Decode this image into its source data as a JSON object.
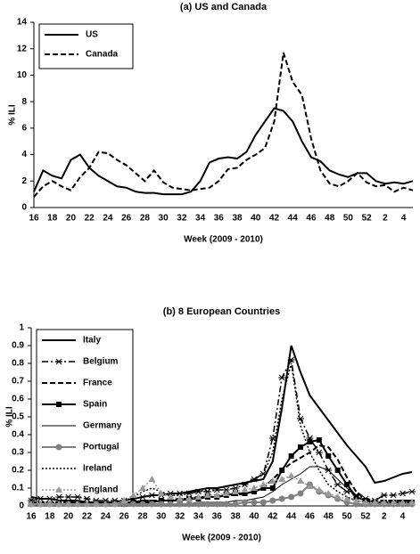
{
  "chart_data": [
    {
      "type": "line",
      "title": "(a) US and Canada",
      "x_label": "Week (2009 - 2010)",
      "y_label": "% ILI",
      "categories": [
        "16",
        null,
        "18",
        null,
        "20",
        null,
        "22",
        null,
        "24",
        null,
        "26",
        null,
        "28",
        null,
        "30",
        null,
        "32",
        null,
        "34",
        null,
        "36",
        null,
        "38",
        null,
        "40",
        null,
        "42",
        null,
        "44",
        null,
        "46",
        null,
        "48",
        null,
        "50",
        null,
        "52",
        null,
        "2",
        null,
        "4",
        null
      ],
      "ylim": [
        0,
        14
      ],
      "yticks": [
        0,
        2,
        4,
        6,
        8,
        10,
        12,
        14
      ],
      "legend": "upper left",
      "series": [
        {
          "name": "US",
          "color": "#000000",
          "line_style": "solid",
          "values": [
            1.2,
            2.8,
            2.4,
            2.2,
            3.6,
            4.0,
            3.0,
            2.4,
            2.0,
            1.6,
            1.5,
            1.2,
            1.1,
            1.1,
            1.0,
            1.0,
            1.0,
            1.2,
            2.0,
            3.4,
            3.7,
            3.8,
            3.7,
            4.2,
            5.5,
            6.5,
            7.5,
            7.3,
            6.5,
            5.0,
            3.8,
            3.5,
            2.8,
            2.5,
            2.3,
            2.6,
            2.6,
            2.0,
            1.8,
            1.9,
            1.8,
            2.0
          ]
        },
        {
          "name": "Canada",
          "color": "#000000",
          "line_style": "dash",
          "values": [
            0.8,
            1.6,
            2.0,
            1.6,
            1.3,
            2.3,
            3.0,
            4.2,
            4.1,
            3.6,
            3.2,
            2.6,
            2.0,
            2.8,
            1.9,
            1.5,
            1.4,
            1.3,
            1.4,
            1.5,
            2.0,
            2.9,
            3.0,
            3.6,
            4.0,
            4.5,
            6.5,
            11.7,
            9.5,
            8.5,
            5.2,
            2.8,
            1.8,
            1.6,
            2.0,
            2.6,
            1.9,
            1.6,
            1.7,
            1.2,
            1.5,
            1.3
          ]
        }
      ]
    },
    {
      "type": "line",
      "title": "(b) 8 European Countries",
      "x_label": "Week (2009 - 2010)",
      "y_label": "% ILI",
      "categories": [
        "16",
        null,
        "18",
        null,
        "20",
        null,
        "22",
        null,
        "24",
        null,
        "26",
        null,
        "28",
        null,
        "30",
        null,
        "32",
        null,
        "34",
        null,
        "36",
        null,
        "38",
        null,
        "40",
        null,
        "42",
        null,
        "44",
        null,
        "46",
        null,
        "48",
        null,
        "50",
        null,
        "52",
        null,
        "2",
        null,
        "4",
        null
      ],
      "ylim": [
        0,
        1
      ],
      "yticks": [
        0,
        0.1,
        0.2,
        0.3,
        0.4,
        0.5,
        0.6,
        0.7,
        0.8,
        0.9,
        1
      ],
      "legend": "upper left",
      "series": [
        {
          "name": "Italy",
          "color": "#000000",
          "line_style": "solid",
          "values": [
            0.05,
            0.04,
            0.04,
            0.03,
            0.03,
            0.03,
            0.02,
            0.02,
            0.02,
            0.02,
            0.03,
            0.04,
            0.05,
            0.06,
            0.06,
            0.07,
            0.07,
            0.08,
            0.09,
            0.1,
            0.1,
            0.11,
            0.12,
            0.13,
            0.14,
            0.15,
            0.25,
            0.55,
            0.9,
            0.75,
            0.62,
            0.55,
            0.48,
            0.41,
            0.34,
            0.28,
            0.22,
            0.13,
            0.14,
            0.16,
            0.18,
            0.19
          ]
        },
        {
          "name": "Belgium",
          "color": "#000000",
          "line_style": "dashdot",
          "marker": "asterisk",
          "values": [
            0.03,
            0.04,
            0.04,
            0.05,
            0.05,
            0.05,
            0.04,
            0.03,
            0.03,
            0.03,
            0.03,
            0.04,
            0.05,
            0.06,
            0.06,
            0.07,
            0.07,
            0.07,
            0.08,
            0.08,
            0.09,
            0.09,
            0.1,
            0.12,
            0.15,
            0.18,
            0.38,
            0.72,
            0.82,
            0.49,
            0.38,
            0.3,
            0.2,
            0.12,
            0.08,
            0.06,
            0.04,
            0.03,
            0.06,
            0.06,
            0.07,
            0.08
          ]
        },
        {
          "name": "France",
          "color": "#000000",
          "line_style": "dash",
          "values": [
            0.02,
            0.02,
            0.02,
            0.02,
            0.02,
            0.02,
            0.02,
            0.02,
            0.02,
            0.02,
            0.02,
            0.02,
            0.03,
            0.03,
            0.03,
            0.04,
            0.04,
            0.04,
            0.05,
            0.05,
            0.05,
            0.06,
            0.06,
            0.07,
            0.08,
            0.1,
            0.15,
            0.2,
            0.24,
            0.27,
            0.3,
            0.34,
            0.33,
            0.26,
            0.16,
            0.08,
            0.04,
            0.03,
            0.03,
            0.03,
            0.03,
            0.03
          ]
        },
        {
          "name": "Spain",
          "color": "#000000",
          "line_style": "solid",
          "marker": "square",
          "values": [
            0.01,
            0.01,
            0.01,
            0.01,
            0.01,
            0.01,
            0.01,
            0.01,
            0.01,
            0.01,
            0.01,
            0.02,
            0.02,
            0.02,
            0.03,
            0.03,
            0.03,
            0.04,
            0.04,
            0.05,
            0.05,
            0.06,
            0.07,
            0.07,
            0.08,
            0.1,
            0.1,
            0.2,
            0.28,
            0.33,
            0.36,
            0.37,
            0.28,
            0.2,
            0.12,
            0.05,
            0.03,
            0.02,
            0.02,
            0.02,
            0.02,
            0.02
          ]
        },
        {
          "name": "Germany",
          "color": "#000000",
          "line_style": "thin",
          "values": [
            0.01,
            0.01,
            0.01,
            0.01,
            0.01,
            0.01,
            0.01,
            0.01,
            0.01,
            0.01,
            0.01,
            0.01,
            0.01,
            0.01,
            0.01,
            0.01,
            0.01,
            0.01,
            0.02,
            0.02,
            0.02,
            0.02,
            0.03,
            0.03,
            0.04,
            0.05,
            0.08,
            0.12,
            0.15,
            0.18,
            0.22,
            0.22,
            0.2,
            0.15,
            0.1,
            0.05,
            0.03,
            0.02,
            0.02,
            0.02,
            0.02,
            0.02
          ]
        },
        {
          "name": "Portugal",
          "color": "#808080",
          "line_style": "solid",
          "marker": "circle",
          "values": [
            0.01,
            0.01,
            0.01,
            0.01,
            0.01,
            0.01,
            0.01,
            0.01,
            0.01,
            0.01,
            0.01,
            0.01,
            0.01,
            0.01,
            0.01,
            0.01,
            0.01,
            0.01,
            0.01,
            0.01,
            0.01,
            0.01,
            0.01,
            0.02,
            0.02,
            0.02,
            0.03,
            0.04,
            0.05,
            0.07,
            0.12,
            0.08,
            0.06,
            0.04,
            0.02,
            0.01,
            0.01,
            0.01,
            0.01,
            0.01,
            0.01,
            0.01
          ]
        },
        {
          "name": "Ireland",
          "color": "#000000",
          "line_style": "dot",
          "values": [
            0.02,
            0.02,
            0.02,
            0.02,
            0.02,
            0.02,
            0.02,
            0.02,
            0.02,
            0.02,
            0.03,
            0.05,
            0.08,
            0.1,
            0.08,
            0.06,
            0.06,
            0.07,
            0.08,
            0.09,
            0.1,
            0.11,
            0.12,
            0.13,
            0.15,
            0.18,
            0.3,
            0.6,
            0.8,
            0.45,
            0.3,
            0.2,
            0.12,
            0.08,
            0.05,
            0.03,
            0.02,
            0.02,
            0.02,
            0.02,
            0.02,
            0.02
          ]
        },
        {
          "name": "England",
          "color": "#999999",
          "line_style": "dot",
          "marker": "triangle",
          "values": [
            0.01,
            0.01,
            0.01,
            0.01,
            0.01,
            0.01,
            0.01,
            0.01,
            0.01,
            0.01,
            0.03,
            0.06,
            0.1,
            0.15,
            0.07,
            0.05,
            0.04,
            0.04,
            0.05,
            0.06,
            0.06,
            0.07,
            0.08,
            0.09,
            0.1,
            0.12,
            0.14,
            0.15,
            0.17,
            0.14,
            0.11,
            0.09,
            0.07,
            0.05,
            0.04,
            0.03,
            0.02,
            0.02,
            0.02,
            0.02,
            0.02,
            0.02
          ]
        }
      ]
    }
  ]
}
